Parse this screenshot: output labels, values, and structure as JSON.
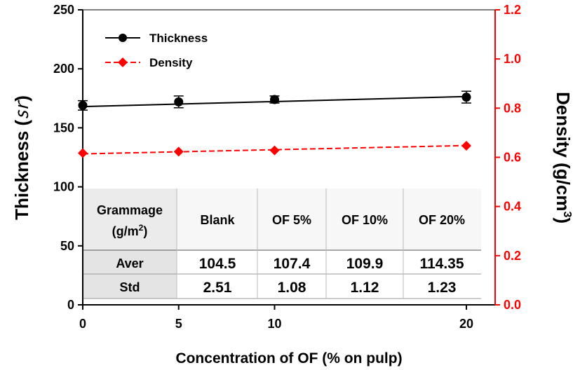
{
  "chart_data": {
    "type": "line",
    "x": [
      0,
      5,
      10,
      20
    ],
    "xlim": [
      0,
      21.5
    ],
    "xticks": [
      "0",
      "5",
      "10",
      "20"
    ],
    "xlabel": "Concentration of OF (% on pulp)",
    "y_left": {
      "label": "Thickness (㏛)",
      "label_main": "Thickness (",
      "label_unit": "㏛",
      "label_close": ")",
      "lim": [
        0,
        250
      ],
      "ticks": [
        "0",
        "50",
        "100",
        "150",
        "200",
        "250"
      ],
      "color": "#000000"
    },
    "y_right": {
      "label": "Density (g/cm3)",
      "label_main": "Density (g/cm",
      "label_sup": "3",
      "label_close": ")",
      "lim": [
        0.0,
        1.2
      ],
      "ticks": [
        "0.0",
        "0.2",
        "0.4",
        "0.6",
        "0.8",
        "1.0",
        "1.2"
      ],
      "color": "#ff0000"
    },
    "series": [
      {
        "name": "Thickness",
        "axis": "left",
        "color": "#000000",
        "marker": "circle",
        "line": "solid",
        "values": [
          169,
          172,
          174,
          176
        ],
        "error": [
          4,
          5,
          3,
          5
        ],
        "trend": [
          168,
          176.5
        ]
      },
      {
        "name": "Density",
        "axis": "right",
        "color": "#ff0000",
        "marker": "diamond",
        "line": "dashed",
        "values": [
          0.617,
          0.623,
          0.628,
          0.647
        ],
        "trend": [
          0.614,
          0.648
        ]
      }
    ],
    "legend": "top-left",
    "grid": false
  },
  "table": {
    "header": [
      "Grammage",
      "(g/m",
      "2",
      ")"
    ],
    "columns": [
      "Blank",
      "OF 5%",
      "OF 10%",
      "OF 20%"
    ],
    "rows": [
      {
        "label": "Aver",
        "values": [
          "104.5",
          "107.4",
          "109.9",
          "114.35"
        ]
      },
      {
        "label": "Std",
        "values": [
          "2.51",
          "1.08",
          "1.12",
          "1.23"
        ]
      }
    ]
  }
}
